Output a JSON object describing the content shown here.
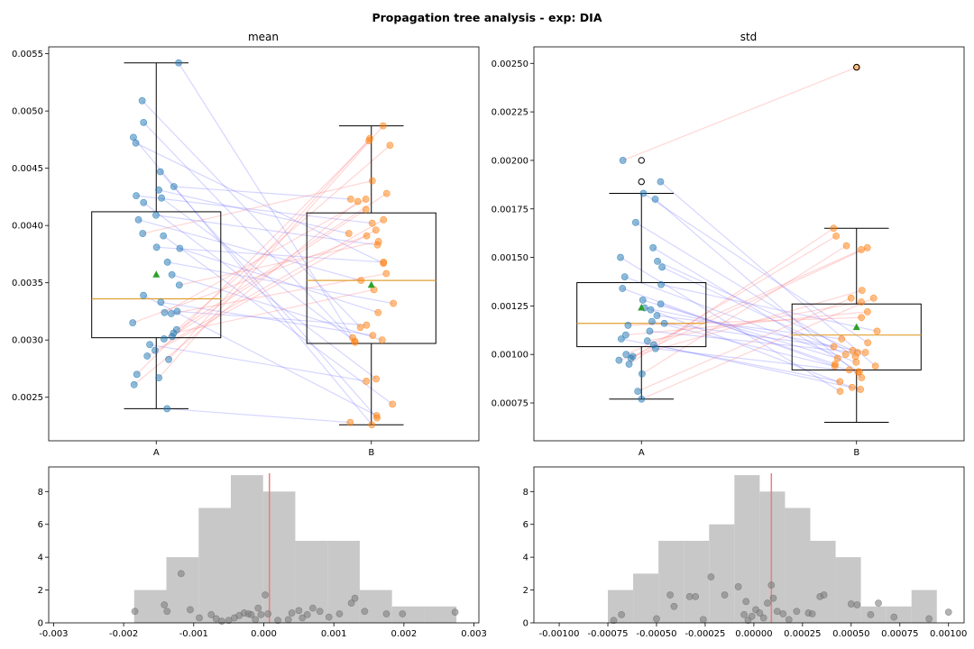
{
  "title": "Propagation tree analysis - exp: DIA",
  "colors": {
    "box": "#000000",
    "median": "#e0a030",
    "mean_marker": "#2ca02c",
    "group_a": "#1f77b4",
    "group_b": "#ff7f0e",
    "link_up": "#ff6b6b",
    "link_down": "#6b6bff",
    "hist_bar": "#c8c8c8",
    "hist_point": "#808080",
    "vline": "#e88080"
  },
  "chart_data": [
    {
      "id": "mean_box",
      "type": "box",
      "title": "mean",
      "categories": [
        "A",
        "B"
      ],
      "ylim": [
        0.00212,
        0.00556
      ],
      "yticks": [
        0.0025,
        0.003,
        0.0035,
        0.004,
        0.0045,
        0.005,
        0.0055
      ],
      "ytick_labels": [
        "0.0025",
        "0.0030",
        "0.0035",
        "0.0040",
        "0.0045",
        "0.0050",
        "0.0055"
      ],
      "boxes": [
        {
          "whisker_low": 0.0024,
          "q1": 0.00302,
          "median": 0.00336,
          "q3": 0.00412,
          "whisker_high": 0.00542,
          "mean": 0.00357
        },
        {
          "whisker_low": 0.00226,
          "q1": 0.00297,
          "median": 0.00352,
          "q3": 0.00411,
          "whisker_high": 0.00487,
          "mean": 0.00348
        }
      ],
      "pairs": [
        [
          0.00542,
          0.00302
        ],
        [
          0.00509,
          0.00311
        ],
        [
          0.0049,
          0.00298
        ],
        [
          0.00477,
          0.00226
        ],
        [
          0.00472,
          0.00367
        ],
        [
          0.00447,
          0.00232
        ],
        [
          0.00434,
          0.00423
        ],
        [
          0.00431,
          0.00393
        ],
        [
          0.00426,
          0.00402
        ],
        [
          0.00424,
          0.00299
        ],
        [
          0.0042,
          0.00266
        ],
        [
          0.00409,
          0.00383
        ],
        [
          0.00405,
          0.00352
        ],
        [
          0.00393,
          0.00439
        ],
        [
          0.00391,
          0.00244
        ],
        [
          0.00381,
          0.00368
        ],
        [
          0.0038,
          0.00324
        ],
        [
          0.00368,
          0.00332
        ],
        [
          0.00357,
          0.003
        ],
        [
          0.00348,
          0.00386
        ],
        [
          0.00339,
          0.00234
        ],
        [
          0.00333,
          0.00304
        ],
        [
          0.00325,
          0.00313
        ],
        [
          0.00324,
          0.00423
        ],
        [
          0.00323,
          0.00358
        ],
        [
          0.00315,
          0.00391
        ],
        [
          0.00309,
          0.0047
        ],
        [
          0.00306,
          0.00344
        ],
        [
          0.00303,
          0.00414
        ],
        [
          0.00301,
          0.00428
        ],
        [
          0.00296,
          0.00264
        ],
        [
          0.00291,
          0.00405
        ],
        [
          0.00286,
          0.00396
        ],
        [
          0.00283,
          0.00476
        ],
        [
          0.0027,
          0.00474
        ],
        [
          0.00267,
          0.00487
        ],
        [
          0.00261,
          0.00421
        ],
        [
          0.0024,
          0.00228
        ]
      ]
    },
    {
      "id": "std_box",
      "type": "box",
      "title": "std",
      "categories": [
        "A",
        "B"
      ],
      "ylim": [
        0.000555,
        0.002585
      ],
      "yticks": [
        0.00075,
        0.001,
        0.00125,
        0.0015,
        0.00175,
        0.002,
        0.00225,
        0.0025
      ],
      "ytick_labels": [
        "0.00075",
        "0.00100",
        "0.00125",
        "0.00150",
        "0.00175",
        "0.00200",
        "0.00225",
        "0.00250"
      ],
      "boxes": [
        {
          "whisker_low": 0.00077,
          "q1": 0.00104,
          "median": 0.00116,
          "q3": 0.00137,
          "whisker_high": 0.00183,
          "mean": 0.00124,
          "outliers": [
            0.002,
            0.00189
          ]
        },
        {
          "whisker_low": 0.00065,
          "q1": 0.00092,
          "median": 0.0011,
          "q3": 0.00126,
          "whisker_high": 0.00165,
          "mean": 0.00114,
          "outliers": [
            0.00248
          ]
        }
      ],
      "pairs": [
        [
          0.002,
          0.00248
        ],
        [
          0.00189,
          0.00094
        ],
        [
          0.00183,
          0.00106
        ],
        [
          0.0018,
          0.00088
        ],
        [
          0.00168,
          0.00099
        ],
        [
          0.00155,
          0.00091
        ],
        [
          0.0015,
          0.00081
        ],
        [
          0.00148,
          0.00102
        ],
        [
          0.00145,
          0.001
        ],
        [
          0.0014,
          0.00096
        ],
        [
          0.00136,
          0.00112
        ],
        [
          0.00134,
          0.00094
        ],
        [
          0.00128,
          0.00098
        ],
        [
          0.00126,
          0.00095
        ],
        [
          0.00124,
          0.00101
        ],
        [
          0.00123,
          0.00083
        ],
        [
          0.0012,
          0.00108
        ],
        [
          0.00117,
          0.00092
        ],
        [
          0.00116,
          0.00104
        ],
        [
          0.00115,
          0.00119
        ],
        [
          0.00112,
          0.00101
        ],
        [
          0.0011,
          0.00122
        ],
        [
          0.00108,
          0.00086
        ],
        [
          0.00107,
          0.00127
        ],
        [
          0.00105,
          0.00082
        ],
        [
          0.00103,
          0.00091
        ],
        [
          0.001,
          0.00154
        ],
        [
          0.00099,
          0.00155
        ],
        [
          0.00098,
          0.00161
        ],
        [
          0.00097,
          0.00133
        ],
        [
          0.00095,
          0.00165
        ],
        [
          0.0009,
          0.00156
        ],
        [
          0.00081,
          0.00129
        ],
        [
          0.00077,
          0.00129
        ]
      ]
    },
    {
      "id": "mean_hist",
      "type": "histogram",
      "xlim": [
        -0.00307,
        0.00307
      ],
      "ylim": [
        0,
        9.5
      ],
      "xticks": [
        -0.003,
        -0.002,
        -0.001,
        0.0,
        0.001,
        0.002,
        0.003
      ],
      "xtick_labels": [
        "-0.003",
        "-0.002",
        "-0.001",
        "0.000",
        "0.001",
        "0.002",
        "0.003"
      ],
      "yticks": [
        0,
        2,
        4,
        6,
        8
      ],
      "ytick_labels": [
        "0",
        "2",
        "4",
        "6",
        "8"
      ],
      "bin_edges": [
        -0.00185,
        -0.00139,
        -0.00093,
        -0.00047,
        -1e-05,
        0.00045,
        0.00091,
        0.00137,
        0.00183,
        0.00229,
        0.00275
      ],
      "counts": [
        2,
        4,
        7,
        9,
        8,
        5,
        5,
        2,
        1,
        1
      ],
      "vline": 8e-05,
      "points": [
        [
          -0.00184,
          0.7
        ],
        [
          -0.00142,
          1.1
        ],
        [
          -0.00138,
          0.7
        ],
        [
          -0.00118,
          3.0
        ],
        [
          -0.00105,
          0.8
        ],
        [
          -0.00092,
          0.3
        ],
        [
          -0.00075,
          0.5
        ],
        [
          -0.00068,
          0.25
        ],
        [
          -0.0006,
          0.1
        ],
        [
          -0.0005,
          0.15
        ],
        [
          -0.00042,
          0.3
        ],
        [
          -0.00035,
          0.45
        ],
        [
          -0.00028,
          0.6
        ],
        [
          -0.00022,
          0.55
        ],
        [
          -0.00018,
          0.5
        ],
        [
          -0.00012,
          0.2
        ],
        [
          -8e-05,
          0.9
        ],
        [
          -4e-05,
          0.5
        ],
        [
          2e-05,
          1.7
        ],
        [
          6e-05,
          0.55
        ],
        [
          0.0002,
          0.15
        ],
        [
          0.00035,
          0.2
        ],
        [
          0.0004,
          0.6
        ],
        [
          0.0005,
          0.75
        ],
        [
          0.00055,
          0.3
        ],
        [
          0.00062,
          0.5
        ],
        [
          0.0007,
          0.9
        ],
        [
          0.0008,
          0.7
        ],
        [
          0.00093,
          0.35
        ],
        [
          0.00108,
          0.55
        ],
        [
          0.00125,
          1.2
        ],
        [
          0.0013,
          1.5
        ],
        [
          0.00144,
          0.7
        ],
        [
          0.00175,
          0.55
        ],
        [
          0.00198,
          0.55
        ],
        [
          0.00273,
          0.65
        ]
      ]
    },
    {
      "id": "std_hist",
      "type": "histogram",
      "xlim": [
        -0.00113,
        0.00108
      ],
      "ylim": [
        0,
        9.5
      ],
      "xticks": [
        -0.001,
        -0.00075,
        -0.0005,
        -0.00025,
        0.0,
        0.00025,
        0.0005,
        0.00075,
        0.001
      ],
      "xtick_labels": [
        "-0.00100",
        "-0.00075",
        "-0.00050",
        "-0.00025",
        "0.00000",
        "0.00025",
        "0.00050",
        "0.00075",
        "0.00100"
      ],
      "yticks": [
        0,
        2,
        4,
        6,
        8
      ],
      "ytick_labels": [
        "0",
        "2",
        "4",
        "6",
        "8"
      ],
      "bin_edges": [
        -0.00075,
        -0.00062,
        -0.00049,
        -0.00036,
        -0.00023,
        -0.0001,
        3e-05,
        0.00016,
        0.00029,
        0.00042,
        0.00055,
        0.00068,
        0.00081,
        0.00094
      ],
      "counts": [
        2,
        3,
        5,
        5,
        6,
        9,
        8,
        7,
        5,
        4,
        1,
        1,
        2
      ],
      "vline": 9e-05,
      "points": [
        [
          -0.00072,
          0.15
        ],
        [
          -0.00068,
          0.5
        ],
        [
          -0.0005,
          0.25
        ],
        [
          -0.00043,
          1.7
        ],
        [
          -0.00041,
          1.0
        ],
        [
          -0.00033,
          1.6
        ],
        [
          -0.0003,
          1.6
        ],
        [
          -0.00026,
          0.2
        ],
        [
          -0.00022,
          2.8
        ],
        [
          -0.00015,
          1.7
        ],
        [
          -8e-05,
          2.2
        ],
        [
          -5e-05,
          0.5
        ],
        [
          -4e-05,
          1.3
        ],
        [
          -3e-05,
          0.15
        ],
        [
          -1e-05,
          0.4
        ],
        [
          1e-05,
          0.8
        ],
        [
          3e-05,
          0.6
        ],
        [
          5e-05,
          0.3
        ],
        [
          7e-05,
          1.2
        ],
        [
          9e-05,
          2.3
        ],
        [
          0.0001,
          1.5
        ],
        [
          0.00012,
          0.7
        ],
        [
          0.00015,
          0.55
        ],
        [
          0.00018,
          0.2
        ],
        [
          0.00022,
          0.7
        ],
        [
          0.00028,
          0.6
        ],
        [
          0.0003,
          0.55
        ],
        [
          0.00034,
          1.6
        ],
        [
          0.00036,
          1.7
        ],
        [
          0.0005,
          1.15
        ],
        [
          0.00053,
          1.1
        ],
        [
          0.0006,
          0.5
        ],
        [
          0.00064,
          1.2
        ],
        [
          0.00072,
          0.35
        ],
        [
          0.0009,
          0.25
        ],
        [
          0.001,
          0.65
        ]
      ]
    }
  ]
}
